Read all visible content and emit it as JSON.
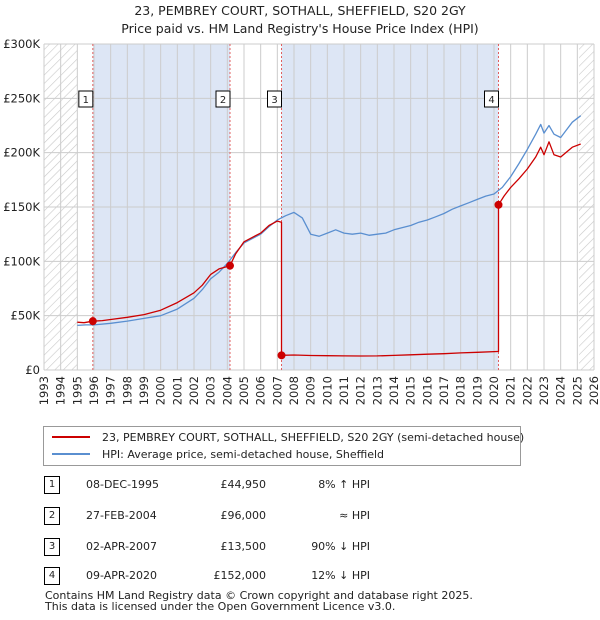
{
  "title_line1": "23, PEMBREY COURT, SOTHALL, SHEFFIELD, S20 2GY",
  "title_line2": "Price paid vs. HM Land Registry's House Price Index (HPI)",
  "colors": {
    "property": "#cc0000",
    "hpi": "#5a8fd0",
    "shade": "#dde6f5",
    "grid": "#cccccc",
    "hatch": "#c8c8c8",
    "marker_line": "#e06060"
  },
  "chart_data": {
    "type": "line",
    "title": "Price paid vs. HM Land Registry's House Price Index (HPI)",
    "xlabel": "",
    "ylabel": "",
    "xlim": [
      1993,
      2026
    ],
    "ylim": [
      0,
      300000
    ],
    "x_ticks": [
      1993,
      1994,
      1995,
      1996,
      1997,
      1998,
      1999,
      2000,
      2001,
      2002,
      2003,
      2004,
      2005,
      2006,
      2007,
      2008,
      2009,
      2010,
      2011,
      2012,
      2013,
      2014,
      2015,
      2016,
      2017,
      2018,
      2019,
      2020,
      2021,
      2022,
      2023,
      2024,
      2025,
      2026
    ],
    "y_ticks": [
      0,
      50000,
      100000,
      150000,
      200000,
      250000,
      300000
    ],
    "y_tick_labels": [
      "£0",
      "£50K",
      "£100K",
      "£150K",
      "£200K",
      "£250K",
      "£300K"
    ],
    "hatched_ranges": [
      [
        1993,
        1995.0
      ],
      [
        2025.1,
        2026
      ]
    ],
    "shaded_ranges": [
      [
        1995.93,
        2004.16
      ],
      [
        2007.25,
        2020.27
      ]
    ],
    "series": [
      {
        "name": "23, PEMBREY COURT, SOTHALL, SHEFFIELD, S20 2GY (semi-detached house)",
        "points": [
          [
            1995.0,
            44000
          ],
          [
            1995.4,
            43500
          ],
          [
            1995.93,
            44950
          ],
          [
            1996.5,
            45500
          ],
          [
            1997.0,
            46500
          ],
          [
            1998.0,
            48500
          ],
          [
            1999.0,
            51000
          ],
          [
            2000.0,
            55000
          ],
          [
            2001.0,
            62000
          ],
          [
            2002.0,
            71000
          ],
          [
            2002.5,
            78000
          ],
          [
            2003.0,
            88000
          ],
          [
            2003.5,
            93000
          ],
          [
            2004.16,
            96000
          ],
          [
            2004.5,
            107000
          ],
          [
            2005.0,
            118000
          ],
          [
            2005.5,
            122000
          ],
          [
            2006.0,
            126000
          ],
          [
            2006.5,
            133000
          ],
          [
            2007.0,
            137000
          ],
          [
            2007.25,
            136000
          ],
          [
            2007.25,
            13500
          ],
          [
            2008.0,
            13800
          ],
          [
            2009.0,
            13300
          ],
          [
            2010.0,
            13200
          ],
          [
            2011.0,
            13000
          ],
          [
            2012.0,
            12900
          ],
          [
            2013.0,
            13000
          ],
          [
            2014.0,
            13400
          ],
          [
            2015.0,
            14000
          ],
          [
            2016.0,
            14500
          ],
          [
            2017.0,
            15000
          ],
          [
            2018.0,
            15700
          ],
          [
            2019.0,
            16300
          ],
          [
            2020.2,
            17000
          ],
          [
            2020.27,
            17000
          ],
          [
            2020.27,
            152000
          ],
          [
            2020.6,
            160000
          ],
          [
            2021.0,
            168000
          ],
          [
            2021.5,
            176000
          ],
          [
            2022.0,
            185000
          ],
          [
            2022.5,
            196000
          ],
          [
            2022.8,
            205000
          ],
          [
            2023.0,
            198000
          ],
          [
            2023.3,
            210000
          ],
          [
            2023.6,
            198000
          ],
          [
            2024.0,
            196000
          ],
          [
            2024.3,
            200000
          ],
          [
            2024.7,
            205000
          ],
          [
            2025.2,
            208000
          ]
        ]
      },
      {
        "name": "HPI: Average price, semi-detached house, Sheffield",
        "points": [
          [
            1995.0,
            41000
          ],
          [
            1995.5,
            41500
          ],
          [
            1996.0,
            41500
          ],
          [
            1997.0,
            43000
          ],
          [
            1998.0,
            45000
          ],
          [
            1999.0,
            47500
          ],
          [
            2000.0,
            50000
          ],
          [
            2001.0,
            56000
          ],
          [
            2002.0,
            66000
          ],
          [
            2002.5,
            74000
          ],
          [
            2003.0,
            84000
          ],
          [
            2003.5,
            90000
          ],
          [
            2004.0,
            98000
          ],
          [
            2004.5,
            108000
          ],
          [
            2005.0,
            117000
          ],
          [
            2005.5,
            121000
          ],
          [
            2006.0,
            125000
          ],
          [
            2006.5,
            132000
          ],
          [
            2007.0,
            138000
          ],
          [
            2007.5,
            142000
          ],
          [
            2008.0,
            145000
          ],
          [
            2008.5,
            140000
          ],
          [
            2009.0,
            125000
          ],
          [
            2009.5,
            123000
          ],
          [
            2010.0,
            126000
          ],
          [
            2010.5,
            129000
          ],
          [
            2011.0,
            126000
          ],
          [
            2011.5,
            125000
          ],
          [
            2012.0,
            126000
          ],
          [
            2012.5,
            124000
          ],
          [
            2013.0,
            125000
          ],
          [
            2013.5,
            126000
          ],
          [
            2014.0,
            129000
          ],
          [
            2014.5,
            131000
          ],
          [
            2015.0,
            133000
          ],
          [
            2015.5,
            136000
          ],
          [
            2016.0,
            138000
          ],
          [
            2016.5,
            141000
          ],
          [
            2017.0,
            144000
          ],
          [
            2017.5,
            148000
          ],
          [
            2018.0,
            151000
          ],
          [
            2018.5,
            154000
          ],
          [
            2019.0,
            157000
          ],
          [
            2019.5,
            160000
          ],
          [
            2020.0,
            162000
          ],
          [
            2020.5,
            168000
          ],
          [
            2021.0,
            178000
          ],
          [
            2021.5,
            190000
          ],
          [
            2022.0,
            203000
          ],
          [
            2022.5,
            217000
          ],
          [
            2022.8,
            226000
          ],
          [
            2023.0,
            218000
          ],
          [
            2023.3,
            225000
          ],
          [
            2023.6,
            217000
          ],
          [
            2024.0,
            214000
          ],
          [
            2024.3,
            220000
          ],
          [
            2024.7,
            228000
          ],
          [
            2025.2,
            234000
          ]
        ]
      }
    ],
    "markers": [
      {
        "id": "1",
        "x": 1995.93,
        "y": 44950
      },
      {
        "id": "2",
        "x": 2004.16,
        "y": 96000
      },
      {
        "id": "3",
        "x": 2007.25,
        "y": 13500
      },
      {
        "id": "4",
        "x": 2020.27,
        "y": 152000
      }
    ],
    "legend_position": "below"
  },
  "legend": {
    "property_label": "23, PEMBREY COURT, SOTHALL, SHEFFIELD, S20 2GY (semi-detached house)",
    "hpi_label": "HPI: Average price, semi-detached house, Sheffield"
  },
  "transactions": [
    {
      "num": "1",
      "date": "08-DEC-1995",
      "price": "£44,950",
      "hpi": "8% ↑ HPI"
    },
    {
      "num": "2",
      "date": "27-FEB-2004",
      "price": "£96,000",
      "hpi": "≈ HPI"
    },
    {
      "num": "3",
      "date": "02-APR-2007",
      "price": "£13,500",
      "hpi": "90% ↓ HPI"
    },
    {
      "num": "4",
      "date": "09-APR-2020",
      "price": "£152,000",
      "hpi": "12% ↓ HPI"
    }
  ],
  "footer": {
    "line1": "Contains HM Land Registry data © Crown copyright and database right 2025.",
    "line2": "This data is licensed under the Open Government Licence v3.0."
  }
}
